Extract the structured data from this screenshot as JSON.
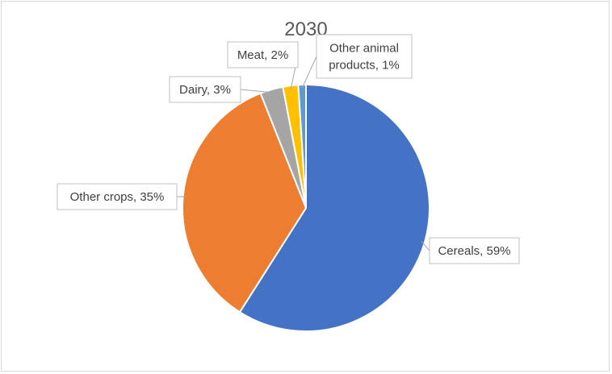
{
  "chart_data": {
    "type": "pie",
    "title": "2030",
    "slices": [
      {
        "name": "Cereals",
        "value": 59,
        "label": "Cereals, 59%",
        "color": "#4472C4"
      },
      {
        "name": "Other crops",
        "value": 35,
        "label": "Other crops, 35%",
        "color": "#ED7D31"
      },
      {
        "name": "Dairy",
        "value": 3,
        "label": "Dairy, 3%",
        "color": "#A5A5A5"
      },
      {
        "name": "Meat",
        "value": 2,
        "label": "Meat, 2%",
        "color": "#FFC000"
      },
      {
        "name": "Other animal products",
        "value": 1,
        "label_lines": [
          "Other animal",
          "products, 1%"
        ],
        "color": "#5B9BD5"
      }
    ],
    "legend": "none",
    "data_labels": "callout"
  }
}
